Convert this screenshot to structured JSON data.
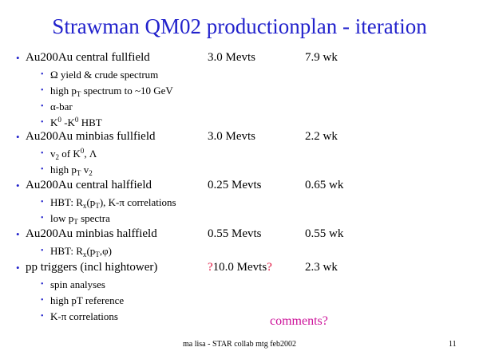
{
  "slide": {
    "title": "Strawman QM02 productionplan - iteration",
    "bullet_glyph": "•",
    "comments": "comments?",
    "footer": "ma lisa - STAR collab mtg feb2002",
    "page_number": "11"
  },
  "sections": [
    {
      "label": "Au200Au central fullfield",
      "events": "3.0 Mevts",
      "duration": "7.9 wk",
      "items": [
        {
          "p1": "Ω yield & crude spectrum"
        },
        {
          "p1": "high p",
          "sub1": "T",
          "p2": " spectrum to ~10 GeV"
        },
        {
          "p1": "α-bar"
        },
        {
          "p1": "K",
          "sup1": "0",
          "p2": " -K",
          "sup2": "0",
          "p3": " HBT"
        }
      ]
    },
    {
      "label": "Au200Au minbias fullfield",
      "events": "3.0 Mevts",
      "duration": "2.2 wk",
      "items": [
        {
          "p1": "v",
          "sub1": "2",
          "p2": "  of K",
          "sup2": "0",
          "p3": ", Λ"
        },
        {
          "p1": "high p",
          "sub1": "T",
          "p2": " v",
          "sub2": "2"
        }
      ]
    },
    {
      "label": "Au200Au central halffield",
      "events": "0.25 Mevts",
      "duration": "0.65 wk",
      "items": [
        {
          "p1": "HBT: R",
          "sub1": "x",
          "p2": "(p",
          "sub2": "T",
          "p3": "), K-π correlations"
        },
        {
          "p1": "low p",
          "sub1": "T",
          "p2": " spectra"
        }
      ]
    },
    {
      "label": "Au200Au minbias halffield",
      "events": "0.55 Mevts",
      "duration": "0.55 wk",
      "items": [
        {
          "p1": "HBT: R",
          "sub1": "x",
          "p2": "(p",
          "sub2": "T",
          "p3": ",φ)"
        }
      ]
    },
    {
      "label": "pp triggers (incl hightower)",
      "events_pre": "?",
      "events": "10.0 Mevts",
      "events_post": "?",
      "duration": "2.3 wk",
      "items": [
        {
          "p1": "spin analyses"
        },
        {
          "p1": "high pT reference"
        },
        {
          "p1": "K-π correlations"
        }
      ]
    }
  ]
}
